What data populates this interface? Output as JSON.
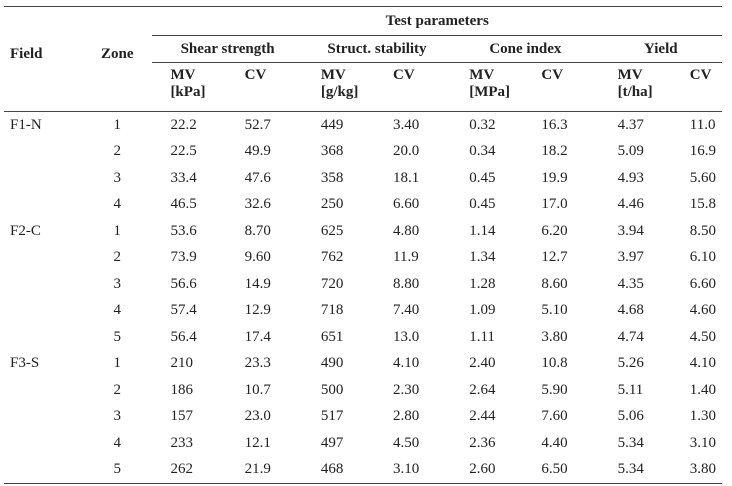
{
  "header": {
    "test_parameters": "Test parameters",
    "field": "Field",
    "zone": "Zone",
    "groups": [
      "Shear strength",
      "Struct. stability",
      "Cone index",
      "Yield"
    ],
    "subcols": [
      {
        "mv": "MV",
        "unit": "[kPa]",
        "cv": "CV"
      },
      {
        "mv": "MV",
        "unit": "[g/kg]",
        "cv": "CV"
      },
      {
        "mv": "MV",
        "unit": "[MPa]",
        "cv": "CV"
      },
      {
        "mv": "MV",
        "unit": "[t/ha]",
        "cv": "CV"
      }
    ]
  },
  "rows": [
    {
      "field": "F1-N",
      "zone": "1",
      "vals": [
        "22.2",
        "52.7",
        "449",
        "3.40",
        "0.32",
        "16.3",
        "4.37",
        "11.0"
      ]
    },
    {
      "field": "",
      "zone": "2",
      "vals": [
        "22.5",
        "49.9",
        "368",
        "20.0",
        "0.34",
        "18.2",
        "5.09",
        "16.9"
      ]
    },
    {
      "field": "",
      "zone": "3",
      "vals": [
        "33.4",
        "47.6",
        "358",
        "18.1",
        "0.45",
        "19.9",
        "4.93",
        "5.60"
      ]
    },
    {
      "field": "",
      "zone": "4",
      "vals": [
        "46.5",
        "32.6",
        "250",
        "6.60",
        "0.45",
        "17.0",
        "4.46",
        "15.8"
      ]
    },
    {
      "field": "F2-C",
      "zone": "1",
      "vals": [
        "53.6",
        "8.70",
        "625",
        "4.80",
        "1.14",
        "6.20",
        "3.94",
        "8.50"
      ]
    },
    {
      "field": "",
      "zone": "2",
      "vals": [
        "73.9",
        "9.60",
        "762",
        "11.9",
        "1.34",
        "12.7",
        "3.97",
        "6.10"
      ]
    },
    {
      "field": "",
      "zone": "3",
      "vals": [
        "56.6",
        "14.9",
        "720",
        "8.80",
        "1.28",
        "8.60",
        "4.35",
        "6.60"
      ]
    },
    {
      "field": "",
      "zone": "4",
      "vals": [
        "57.4",
        "12.9",
        "718",
        "7.40",
        "1.09",
        "5.10",
        "4.68",
        "4.60"
      ]
    },
    {
      "field": "",
      "zone": "5",
      "vals": [
        "56.4",
        "17.4",
        "651",
        "13.0",
        "1.11",
        "3.80",
        "4.74",
        "4.50"
      ]
    },
    {
      "field": "F3-S",
      "zone": "1",
      "vals": [
        "210",
        "23.3",
        "490",
        "4.10",
        "2.40",
        "10.8",
        "5.26",
        "4.10"
      ]
    },
    {
      "field": "",
      "zone": "2",
      "vals": [
        "186",
        "10.7",
        "500",
        "2.30",
        "2.64",
        "5.90",
        "5.11",
        "1.40"
      ]
    },
    {
      "field": "",
      "zone": "3",
      "vals": [
        "157",
        "23.0",
        "517",
        "2.80",
        "2.44",
        "7.60",
        "5.06",
        "1.30"
      ]
    },
    {
      "field": "",
      "zone": "4",
      "vals": [
        "233",
        "12.1",
        "497",
        "4.50",
        "2.36",
        "4.40",
        "5.34",
        "3.10"
      ]
    },
    {
      "field": "",
      "zone": "5",
      "vals": [
        "262",
        "21.9",
        "468",
        "3.10",
        "2.60",
        "6.50",
        "5.34",
        "3.80"
      ]
    }
  ]
}
